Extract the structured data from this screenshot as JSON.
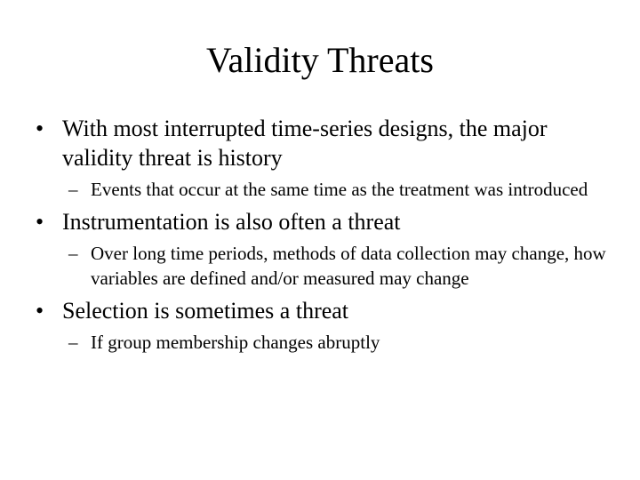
{
  "slide": {
    "title": "Validity Threats",
    "bullet_char": "•",
    "dash_char": "–",
    "points": [
      {
        "text": "With most interrupted time-series designs, the major validity threat is history",
        "sub": [
          "Events that occur at the same time as the treatment was introduced"
        ]
      },
      {
        "text": "Instrumentation is also often a threat",
        "sub": [
          "Over long time periods, methods of data collection may change, how variables are defined and/or measured may change"
        ]
      },
      {
        "text": "Selection is sometimes a threat",
        "sub": [
          "If group membership changes abruptly"
        ]
      }
    ]
  }
}
